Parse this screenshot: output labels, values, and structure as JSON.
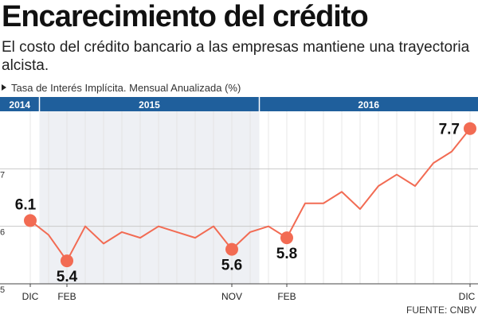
{
  "header": {
    "title": "Encarecimiento del crédito",
    "subtitle": "El costo del crédito bancario a las empresas mantiene una trayectoria alcista.",
    "series_label": "Tasa de Interés Implícita. Mensual Anualizada (%)"
  },
  "source": "FUENTE: CNBV",
  "colors": {
    "line": "#f26b53",
    "band": "#1f5f9c",
    "shade": "#eef0f4",
    "grid": "#c9c9c9",
    "label": "#111111"
  },
  "chart_data": {
    "type": "line",
    "title": "Encarecimiento del crédito",
    "ylabel": "Tasa de Interés Implícita. Mensual Anualizada (%)",
    "ylim": [
      5,
      8
    ],
    "yticks": [
      5,
      6,
      7
    ],
    "year_bands": [
      {
        "label": "2014",
        "start": 0,
        "end": 1
      },
      {
        "label": "2015",
        "start": 1,
        "end": 13
      },
      {
        "label": "2016",
        "start": 13,
        "end": 25
      }
    ],
    "shaded_year": "2015",
    "x": [
      "DIC 2014",
      "ENE 2015",
      "FEB 2015",
      "MAR 2015",
      "ABR 2015",
      "MAY 2015",
      "JUN 2015",
      "JUL 2015",
      "AGO 2015",
      "SEP 2015",
      "OCT 2015",
      "NOV 2015",
      "DIC 2015",
      "ENE 2016",
      "FEB 2016",
      "MAR 2016",
      "ABR 2016",
      "MAY 2016",
      "JUN 2016",
      "JUL 2016",
      "AGO 2016",
      "SEP 2016",
      "OCT 2016",
      "NOV 2016",
      "DIC 2016"
    ],
    "series": [
      {
        "name": "Tasa de Interés Implícita",
        "values": [
          6.1,
          5.85,
          5.4,
          6.0,
          5.7,
          5.9,
          5.8,
          6.0,
          5.9,
          5.8,
          6.0,
          5.6,
          5.9,
          6.0,
          5.8,
          6.4,
          6.4,
          6.6,
          6.3,
          6.7,
          6.9,
          6.7,
          7.1,
          7.3,
          7.7
        ]
      }
    ],
    "x_tick_labels": [
      {
        "index": 0,
        "label": "DIC"
      },
      {
        "index": 2,
        "label": "FEB"
      },
      {
        "index": 11,
        "label": "NOV"
      },
      {
        "index": 14,
        "label": "FEB"
      },
      {
        "index": 24,
        "label": "DIC"
      }
    ],
    "annotations": [
      {
        "index": 0,
        "label": "6.1",
        "pos": "above"
      },
      {
        "index": 2,
        "label": "5.4",
        "pos": "below"
      },
      {
        "index": 11,
        "label": "5.6",
        "pos": "below"
      },
      {
        "index": 14,
        "label": "5.8",
        "pos": "below"
      },
      {
        "index": 24,
        "label": "7.7",
        "pos": "left"
      }
    ]
  }
}
